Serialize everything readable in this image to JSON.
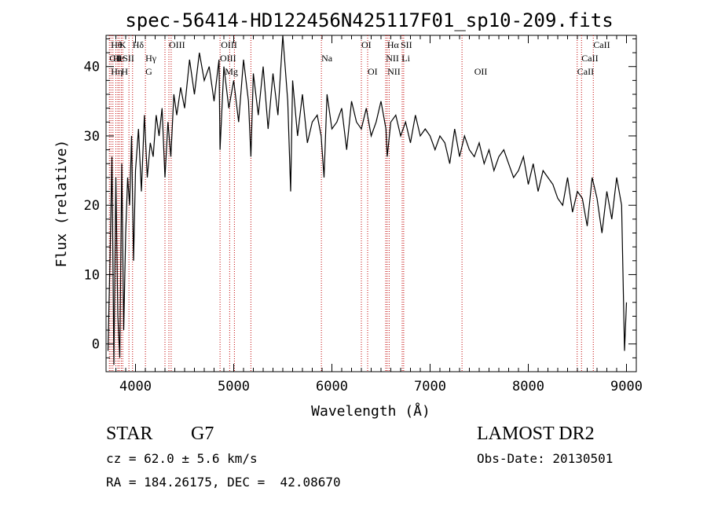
{
  "chart_data": {
    "type": "line",
    "title": "spec-56414-HD122456N425117F01_sp10-209.fits",
    "xlabel": "Wavelength (Å)",
    "ylabel": "Flux (relative)",
    "xlim": [
      3700,
      9100
    ],
    "ylim": [
      -4,
      44.5
    ],
    "x_ticks": [
      4000,
      5000,
      6000,
      7000,
      8000,
      9000
    ],
    "y_ticks": [
      0,
      10,
      20,
      30,
      40
    ],
    "grid": false,
    "series": [
      {
        "x": [
          3720,
          3740,
          3760,
          3780,
          3800,
          3820,
          3840,
          3860,
          3880,
          3900,
          3920,
          3940,
          3960,
          3980,
          4000,
          4030,
          4060,
          4090,
          4120,
          4150,
          4180,
          4210,
          4240,
          4270,
          4300,
          4330,
          4360,
          4390,
          4420,
          4460,
          4500,
          4550,
          4600,
          4650,
          4700,
          4750,
          4800,
          4850,
          4861,
          4900,
          4950,
          5000,
          5050,
          5100,
          5150,
          5175,
          5200,
          5250,
          5300,
          5350,
          5400,
          5450,
          5500,
          5550,
          5580,
          5600,
          5650,
          5700,
          5750,
          5800,
          5850,
          5890,
          5920,
          5950,
          6000,
          6050,
          6100,
          6150,
          6200,
          6250,
          6300,
          6350,
          6400,
          6450,
          6500,
          6550,
          6563,
          6600,
          6650,
          6700,
          6750,
          6800,
          6850,
          6900,
          6950,
          7000,
          7050,
          7100,
          7150,
          7200,
          7250,
          7300,
          7350,
          7400,
          7450,
          7500,
          7550,
          7600,
          7650,
          7700,
          7750,
          7800,
          7850,
          7900,
          7950,
          8000,
          8050,
          8100,
          8150,
          8200,
          8250,
          8300,
          8350,
          8400,
          8450,
          8500,
          8550,
          8600,
          8650,
          8700,
          8750,
          8800,
          8850,
          8900,
          8950,
          8980,
          9000
        ],
        "y": [
          -1,
          12,
          27,
          -3,
          24,
          4,
          -2,
          26,
          2,
          16,
          24,
          20,
          30,
          12,
          25,
          31,
          22,
          33,
          24,
          29,
          27,
          33,
          30,
          34,
          24,
          32,
          27,
          36,
          33,
          37,
          34,
          41,
          36,
          42,
          38,
          40,
          35,
          41,
          28,
          40,
          34,
          38,
          32,
          41,
          35,
          27,
          39,
          33,
          40,
          31,
          39,
          33,
          45,
          35,
          22,
          38,
          30,
          36,
          29,
          32,
          33,
          30,
          24,
          36,
          31,
          32,
          34,
          28,
          35,
          32,
          31,
          34,
          30,
          32,
          35,
          31,
          27,
          32,
          33,
          30,
          32,
          29,
          33,
          30,
          31,
          30,
          28,
          30,
          29,
          26,
          31,
          27,
          30,
          28,
          27,
          29,
          26,
          28,
          25,
          27,
          28,
          26,
          24,
          25,
          27,
          23,
          26,
          22,
          25,
          24,
          23,
          21,
          20,
          24,
          19,
          22,
          21,
          17,
          24,
          21,
          16,
          22,
          18,
          24,
          20,
          -1,
          6
        ]
      }
    ],
    "line_labels": [
      {
        "x": 3734,
        "row": 2,
        "text": "CII"
      },
      {
        "x": 3750,
        "row": 1,
        "text": "Hθ"
      },
      {
        "x": 3750,
        "row": 3,
        "text": "Hη"
      },
      {
        "x": 3770,
        "row": 2,
        "text": "He"
      },
      {
        "x": 3820,
        "row": 2,
        "text": "I"
      },
      {
        "x": 3835,
        "row": 1,
        "text": "K"
      },
      {
        "x": 3855,
        "row": 3,
        "text": "H"
      },
      {
        "x": 3870,
        "row": 2,
        "text": "SII"
      },
      {
        "x": 3970,
        "row": 1,
        "text": "Hδ"
      },
      {
        "x": 4101,
        "row": 2,
        "text": "Hγ"
      },
      {
        "x": 4101,
        "row": 3,
        "text": "G"
      },
      {
        "x": 4340,
        "row": 1,
        "text": "OIII"
      },
      {
        "x": 4870,
        "row": 1,
        "text": "OIII"
      },
      {
        "x": 4860,
        "row": 2,
        "text": "OIII"
      },
      {
        "x": 4910,
        "row": 3,
        "text": "Mg"
      },
      {
        "x": 5893,
        "row": 2,
        "text": "Na"
      },
      {
        "x": 6300,
        "row": 1,
        "text": "OI"
      },
      {
        "x": 6364,
        "row": 3,
        "text": "OI"
      },
      {
        "x": 6563,
        "row": 1,
        "text": "Hα"
      },
      {
        "x": 6550,
        "row": 2,
        "text": "NII"
      },
      {
        "x": 6565,
        "row": 3,
        "text": "NII"
      },
      {
        "x": 6700,
        "row": 1,
        "text": "SII"
      },
      {
        "x": 6710,
        "row": 2,
        "text": "Li"
      },
      {
        "x": 7450,
        "row": 3,
        "text": "OII"
      },
      {
        "x": 8498,
        "row": 3,
        "text": "CaII"
      },
      {
        "x": 8542,
        "row": 2,
        "text": "CaII"
      },
      {
        "x": 8662,
        "row": 1,
        "text": "CaII"
      }
    ],
    "line_markers": [
      3734,
      3750,
      3770,
      3800,
      3820,
      3835,
      3855,
      3870,
      3933,
      3970,
      4101,
      4300,
      4340,
      4363,
      4861,
      4959,
      5007,
      5175,
      5893,
      6300,
      6364,
      6548,
      6563,
      6583,
      6716,
      6731,
      7325,
      8498,
      8542,
      8662
    ]
  },
  "info": {
    "object_type": "STAR",
    "subclass": "G7",
    "survey": "LAMOST DR2",
    "redshift": "cz = 62.0 ± 5.6 km/s",
    "obs_date": "Obs-Date: 20130501",
    "coords": "RA = 184.26175, DEC =  42.08670"
  }
}
